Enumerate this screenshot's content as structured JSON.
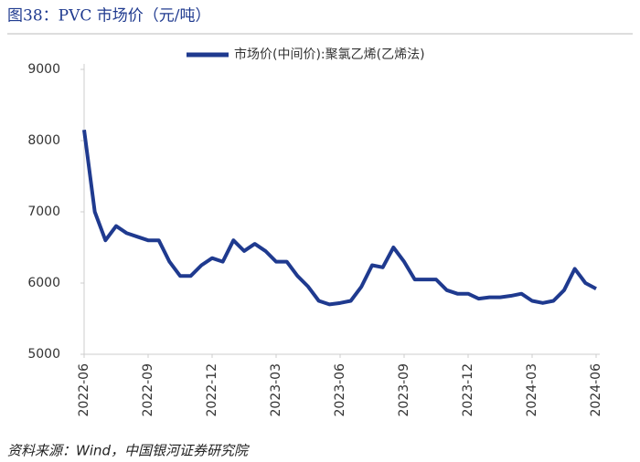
{
  "chart_data": {
    "type": "line",
    "title": "图38：PVC 市场价（元/吨）",
    "source": "资料来源：Wind，中国银河证券研究院",
    "categories": [
      "2022-06",
      null,
      null,
      null,
      null,
      null,
      "2022-09",
      null,
      null,
      null,
      null,
      null,
      "2022-12",
      null,
      null,
      null,
      null,
      null,
      "2023-03",
      null,
      null,
      null,
      null,
      null,
      "2023-06",
      null,
      null,
      null,
      null,
      null,
      "2023-09",
      null,
      null,
      null,
      null,
      null,
      "2023-12",
      null,
      null,
      null,
      null,
      null,
      "2024-03",
      null,
      null,
      null,
      null,
      null,
      "2024-06"
    ],
    "series": [
      {
        "name": "市场价(中间价):聚氯乙烯(乙烯法)",
        "color": "#1f3a8f",
        "values": [
          8150,
          7000,
          6600,
          6800,
          6700,
          6650,
          6600,
          6600,
          6300,
          6100,
          6100,
          6250,
          6350,
          6300,
          6600,
          6450,
          6550,
          6450,
          6300,
          6300,
          6100,
          5950,
          5750,
          5700,
          5720,
          5750,
          5950,
          6250,
          6220,
          6500,
          6300,
          6050,
          6050,
          6050,
          5900,
          5850,
          5850,
          5780,
          5800,
          5800,
          5820,
          5850,
          5750,
          5720,
          5750,
          5900,
          6200,
          6000,
          5920
        ]
      }
    ],
    "ylim": [
      5000,
      9000
    ],
    "yticks": [
      5000,
      6000,
      7000,
      8000,
      9000
    ],
    "legend": "top"
  }
}
